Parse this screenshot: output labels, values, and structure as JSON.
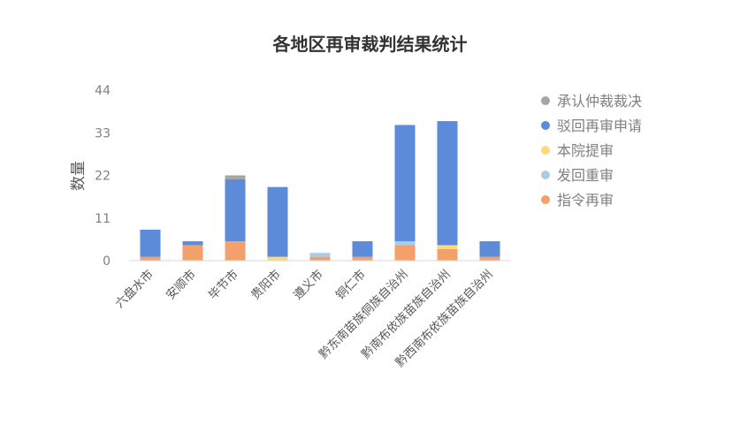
{
  "chart_data": {
    "type": "bar",
    "stacked": true,
    "title": "各地区再审裁判结果统计",
    "ylabel": "数量",
    "xlabel": "",
    "ylim": [
      0,
      44
    ],
    "yticks": [
      0,
      11,
      22,
      33,
      44
    ],
    "grid": false,
    "legend_position": "right",
    "categories": [
      "六盘水市",
      "安顺市",
      "毕节市",
      "贵阳市",
      "遵义市",
      "铜仁市",
      "黔东南苗族侗族自治州",
      "黔南布依族苗族自治州",
      "黔西南布依族苗族自治州"
    ],
    "series": [
      {
        "name": "指令再审",
        "color": "#f4a06b",
        "values": [
          1,
          4,
          5,
          0,
          1,
          1,
          4,
          3,
          1
        ]
      },
      {
        "name": "发回重审",
        "color": "#a9cde8",
        "values": [
          0,
          0,
          0,
          0,
          1,
          0,
          1,
          0,
          0
        ]
      },
      {
        "name": "本院提审",
        "color": "#fdd978",
        "values": [
          0,
          0,
          0,
          1,
          0,
          0,
          0,
          1,
          0
        ]
      },
      {
        "name": "驳回再审申请",
        "color": "#5b8bd9",
        "values": [
          7,
          1,
          16,
          18,
          0,
          4,
          30,
          32,
          4
        ]
      },
      {
        "name": "承认仲裁裁决",
        "color": "#a5a5a5",
        "values": [
          0,
          0,
          1,
          0,
          0,
          0,
          0,
          0,
          0
        ]
      }
    ],
    "legend_order": [
      "承认仲裁裁决",
      "驳回再审申请",
      "本院提审",
      "发回重审",
      "指令再审"
    ]
  }
}
